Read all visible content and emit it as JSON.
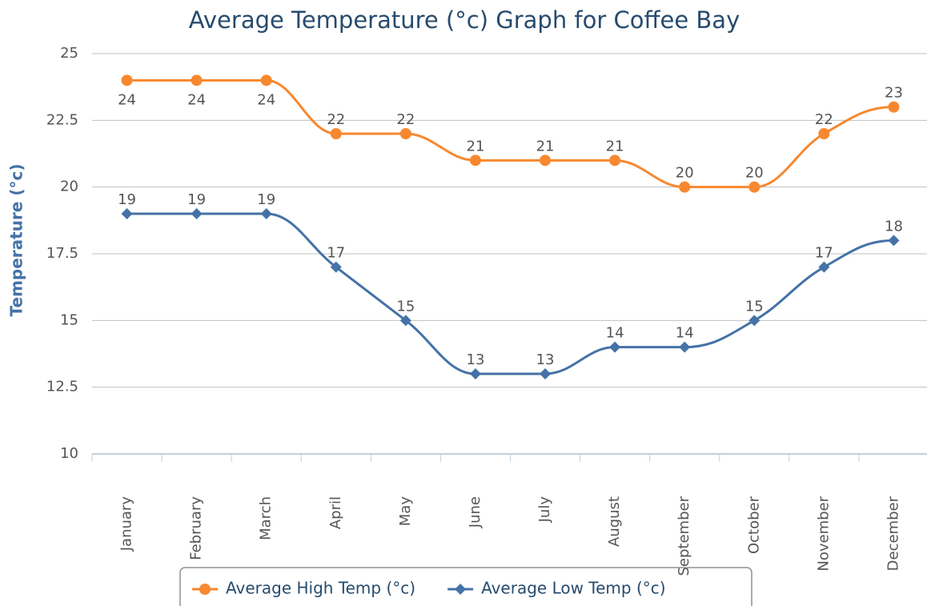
{
  "chart_data": {
    "type": "spline",
    "title": "Average Temperature (°c) Graph for Coffee Bay",
    "y_label": "Temperature (°c)",
    "categories": [
      "January",
      "February",
      "March",
      "April",
      "May",
      "June",
      "July",
      "August",
      "September",
      "October",
      "November",
      "December"
    ],
    "series": [
      {
        "name": "Average High Temp (°c)",
        "color": "#f7882f",
        "marker": "circle",
        "values": [
          24,
          24,
          24,
          22,
          22,
          21,
          21,
          21,
          20,
          20,
          22,
          23
        ]
      },
      {
        "name": "Average Low Temp (°c)",
        "color": "#4572a7",
        "marker": "diamond",
        "values": [
          19,
          19,
          19,
          17,
          15,
          13,
          13,
          14,
          14,
          15,
          17,
          18
        ]
      }
    ],
    "ylim": [
      10,
      25
    ],
    "yticks": [
      10,
      12.5,
      15,
      17.5,
      20,
      22.5,
      25
    ],
    "grid": true,
    "data_labels": true,
    "legend": "bottom"
  }
}
